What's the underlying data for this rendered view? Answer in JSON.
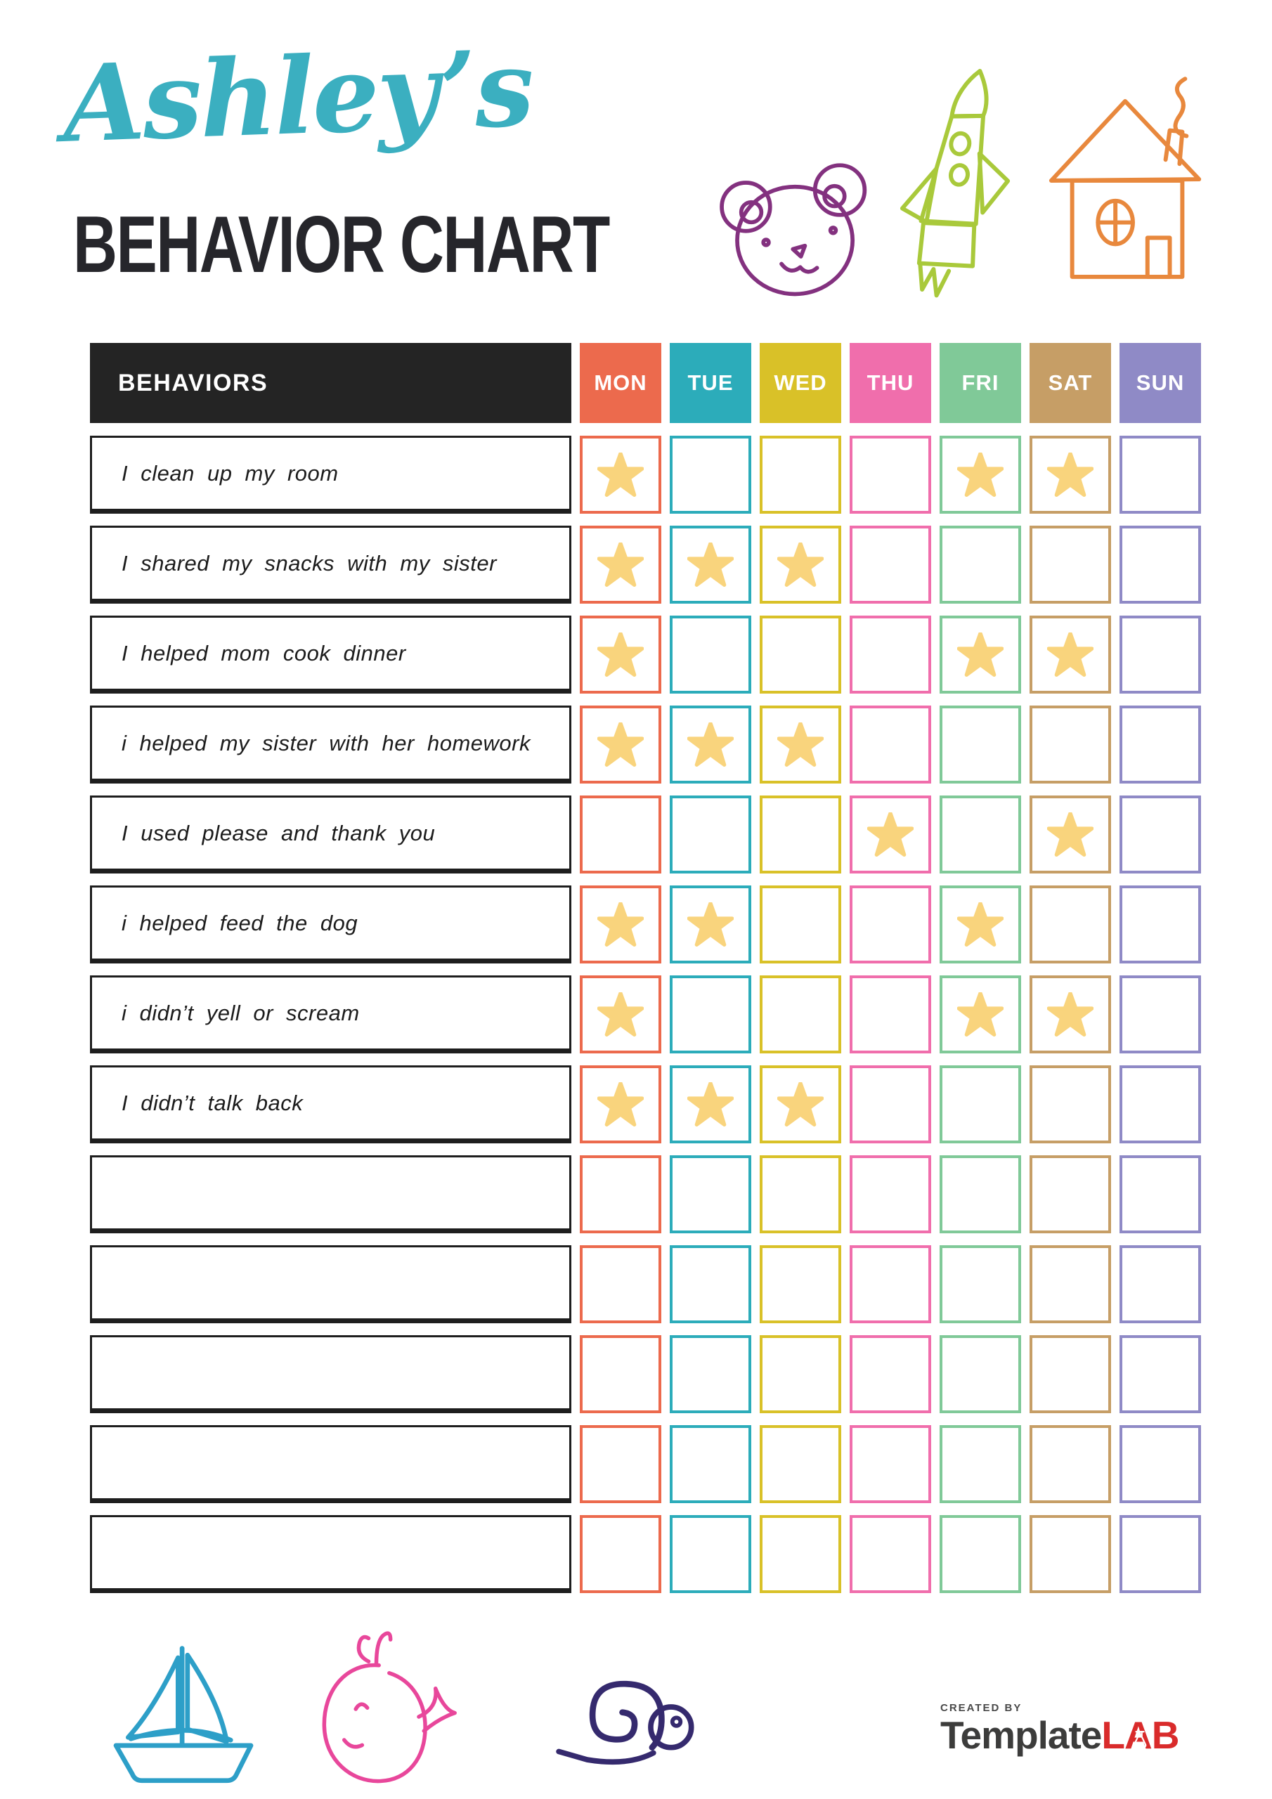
{
  "title": {
    "script": "Ashley’s",
    "main": "BEHAVIOR CHART"
  },
  "colors": {
    "title_script": "#3BAFC0",
    "title_main": "#26262B",
    "table_header_bg": "#242424",
    "row_border": "#1E1E1E",
    "star": "#F9D47D",
    "bear": "#83317F",
    "rocket": "#A9C93B",
    "house": "#E8883D",
    "sailboat": "#2D9FC8",
    "whale": "#E8479B",
    "snail": "#352A6E",
    "logo_text": "#3C3C3B",
    "logo_accent": "#D92B2B",
    "created_by": "#4A4A4A"
  },
  "table": {
    "behaviors_header": "BEHAVIORS",
    "days": [
      {
        "label": "MON",
        "color": "#EC6A4D"
      },
      {
        "label": "TUE",
        "color": "#2CACBA"
      },
      {
        "label": "WED",
        "color": "#D9C128"
      },
      {
        "label": "THU",
        "color": "#F06EAC"
      },
      {
        "label": "FRI",
        "color": "#80C998"
      },
      {
        "label": "SAT",
        "color": "#C69E66"
      },
      {
        "label": "SUN",
        "color": "#8F8AC6"
      }
    ],
    "rows": [
      {
        "label": "I clean up my room",
        "stars": [
          "MON",
          "FRI",
          "SAT"
        ]
      },
      {
        "label": "I shared my snacks with my sister",
        "stars": [
          "MON",
          "TUE",
          "WED"
        ]
      },
      {
        "label": "I helped mom cook dinner",
        "stars": [
          "MON",
          "FRI",
          "SAT"
        ]
      },
      {
        "label": "i helped my sister with her homework",
        "stars": [
          "MON",
          "TUE",
          "WED"
        ]
      },
      {
        "label": "I used please and thank you",
        "stars": [
          "THU",
          "SAT"
        ]
      },
      {
        "label": "i helped feed the dog",
        "stars": [
          "MON",
          "TUE",
          "FRI"
        ]
      },
      {
        "label": "i didn’t yell or scream",
        "stars": [
          "MON",
          "FRI",
          "SAT"
        ]
      },
      {
        "label": "I didn’t talk back",
        "stars": [
          "MON",
          "TUE",
          "WED"
        ]
      },
      {
        "label": "",
        "stars": []
      },
      {
        "label": "",
        "stars": []
      },
      {
        "label": "",
        "stars": []
      },
      {
        "label": "",
        "stars": []
      },
      {
        "label": "",
        "stars": []
      }
    ]
  },
  "doodles": {
    "top": [
      "bear",
      "rocket",
      "house"
    ],
    "bottom": [
      "sailboat",
      "whale",
      "snail"
    ]
  },
  "footer": {
    "created_by": "CREATED BY",
    "brand_part1": "Template",
    "brand_part2": "LAB"
  }
}
